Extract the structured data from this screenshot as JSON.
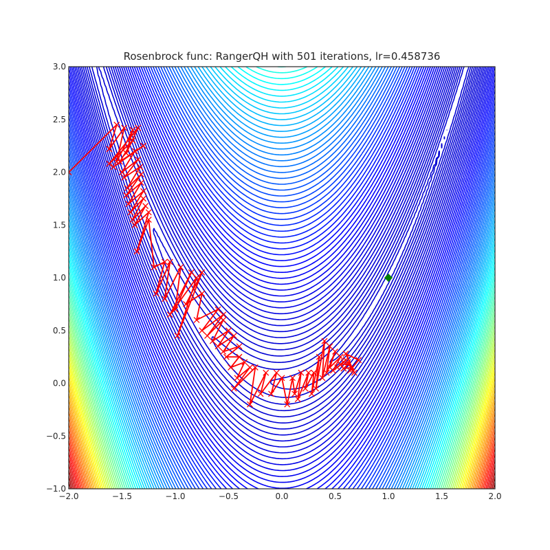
{
  "chart_data": {
    "type": "contour",
    "title": "Rosenbrock func: RangerQH with 501 iterations, lr=0.458736",
    "xlabel": "",
    "ylabel": "",
    "xlim": [
      -2.0,
      2.0
    ],
    "ylim": [
      -1.0,
      3.0
    ],
    "x_ticks": [
      "−2.0",
      "−1.5",
      "−1.0",
      "−0.5",
      "0.0",
      "0.5",
      "1.0",
      "1.5",
      "2.0"
    ],
    "y_ticks": [
      "−1.0",
      "−0.5",
      "0.0",
      "0.5",
      "1.0",
      "1.5",
      "2.0",
      "2.5",
      "3.0"
    ],
    "x_tick_values": [
      -2.0,
      -1.5,
      -1.0,
      -0.5,
      0.0,
      0.5,
      1.0,
      1.5,
      2.0
    ],
    "y_tick_values": [
      -1.0,
      -0.5,
      0.0,
      0.5,
      1.0,
      1.5,
      2.0,
      2.5,
      3.0
    ],
    "grid": false,
    "colormap": "jet",
    "optimizer_path_color": "#ff0000",
    "minimum_marker_color": "#008000",
    "global_minimum": {
      "x": 1.0,
      "y": 1.0
    },
    "path": {
      "marker": "x",
      "points": [
        [
          -2.0,
          2.0
        ],
        [
          -1.55,
          2.45
        ],
        [
          -1.62,
          2.22
        ],
        [
          -1.48,
          2.42
        ],
        [
          -1.55,
          2.1
        ],
        [
          -1.4,
          2.4
        ],
        [
          -1.46,
          2.18
        ],
        [
          -1.35,
          2.42
        ],
        [
          -1.62,
          2.08
        ],
        [
          -1.4,
          2.3
        ],
        [
          -1.52,
          2.1
        ],
        [
          -1.3,
          2.25
        ],
        [
          -1.58,
          2.05
        ],
        [
          -1.38,
          2.2
        ],
        [
          -1.5,
          2.0
        ],
        [
          -1.35,
          2.12
        ],
        [
          -1.48,
          1.95
        ],
        [
          -1.33,
          2.05
        ],
        [
          -1.45,
          1.85
        ],
        [
          -1.32,
          1.98
        ],
        [
          -1.46,
          1.78
        ],
        [
          -1.32,
          1.9
        ],
        [
          -1.44,
          1.7
        ],
        [
          -1.3,
          1.82
        ],
        [
          -1.42,
          1.62
        ],
        [
          -1.3,
          1.75
        ],
        [
          -1.4,
          1.55
        ],
        [
          -1.28,
          1.68
        ],
        [
          -1.38,
          1.5
        ],
        [
          -1.25,
          1.62
        ],
        [
          -1.36,
          1.25
        ],
        [
          -1.25,
          1.55
        ],
        [
          -1.2,
          1.1
        ],
        [
          -1.1,
          1.15
        ],
        [
          -1.18,
          0.85
        ],
        [
          -1.05,
          1.15
        ],
        [
          -1.1,
          0.8
        ],
        [
          -0.95,
          1.1
        ],
        [
          -1.0,
          0.7
        ],
        [
          -0.85,
          1.05
        ],
        [
          -1.05,
          0.65
        ],
        [
          -0.8,
          1.0
        ],
        [
          -0.98,
          0.45
        ],
        [
          -0.75,
          1.05
        ],
        [
          -0.9,
          0.75
        ],
        [
          -0.75,
          0.85
        ],
        [
          -0.8,
          0.6
        ],
        [
          -0.6,
          0.7
        ],
        [
          -0.75,
          0.5
        ],
        [
          -0.55,
          0.65
        ],
        [
          -0.7,
          0.45
        ],
        [
          -0.55,
          0.6
        ],
        [
          -0.65,
          0.4
        ],
        [
          -0.5,
          0.5
        ],
        [
          -0.6,
          0.35
        ],
        [
          -0.45,
          0.45
        ],
        [
          -0.55,
          0.3
        ],
        [
          -0.4,
          0.35
        ],
        [
          -0.52,
          0.25
        ],
        [
          -0.4,
          0.25
        ],
        [
          -0.48,
          0.15
        ],
        [
          -0.35,
          0.2
        ],
        [
          -0.42,
          0.05
        ],
        [
          -0.3,
          0.15
        ],
        [
          -0.45,
          -0.05
        ],
        [
          -0.25,
          0.15
        ],
        [
          -0.3,
          -0.2
        ],
        [
          -0.15,
          0.1
        ],
        [
          -0.2,
          -0.1
        ],
        [
          -0.05,
          0.1
        ],
        [
          -0.1,
          -0.1
        ],
        [
          0.0,
          0.05
        ],
        [
          0.05,
          -0.2
        ],
        [
          0.1,
          0.05
        ],
        [
          0.12,
          -0.1
        ],
        [
          0.18,
          0.1
        ],
        [
          0.15,
          -0.15
        ],
        [
          0.25,
          0.1
        ],
        [
          0.22,
          -0.05
        ],
        [
          0.3,
          0.1
        ],
        [
          0.28,
          -0.1
        ],
        [
          0.35,
          0.25
        ],
        [
          0.32,
          -0.05
        ],
        [
          0.4,
          0.4
        ],
        [
          0.38,
          0.05
        ],
        [
          0.45,
          0.35
        ],
        [
          0.42,
          0.1
        ],
        [
          0.5,
          0.3
        ],
        [
          0.45,
          0.15
        ],
        [
          0.55,
          0.25
        ],
        [
          0.48,
          0.12
        ],
        [
          0.58,
          0.2
        ],
        [
          0.52,
          0.15
        ],
        [
          0.6,
          0.22
        ],
        [
          0.55,
          0.18
        ],
        [
          0.62,
          0.18
        ],
        [
          0.58,
          0.14
        ],
        [
          0.66,
          0.15
        ],
        [
          0.62,
          0.2
        ],
        [
          0.68,
          0.1
        ],
        [
          0.6,
          0.28
        ],
        [
          0.72,
          0.22
        ],
        [
          0.64,
          0.12
        ]
      ]
    }
  }
}
